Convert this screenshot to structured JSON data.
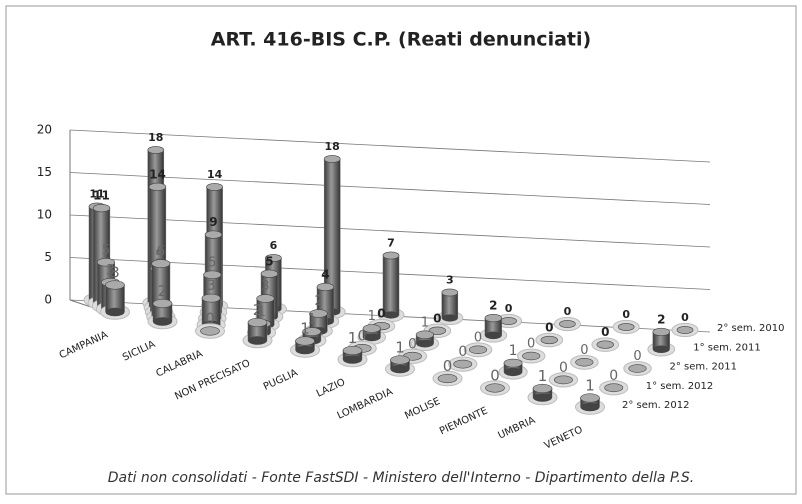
{
  "chart_data": {
    "type": "bar3d",
    "title": "ART. 416-BIS C.P. (Reati denunciati)",
    "footnote": "Dati non consolidati - Fonte FastSDI - Ministero dell'Interno - Dipartimento della P.S.",
    "categories": [
      "CAMPANIA",
      "SICILIA",
      "CALABRIA",
      "NON PRECISATO",
      "PUGLIA",
      "LAZIO",
      "LOMBARDIA",
      "MOLISE",
      "PIEMONTE",
      "UMBRIA",
      "VENETO"
    ],
    "series": [
      {
        "name": "2° sem. 2010",
        "color": "#6e6e6e",
        "values": [
          11,
          18,
          14,
          6,
          18,
          7,
          3,
          0,
          0,
          0,
          0
        ]
      },
      {
        "name": "1° sem. 2011",
        "color": "#6e6e6e",
        "values": [
          11,
          14,
          9,
          5,
          4,
          0,
          0,
          2,
          0,
          0,
          2
        ]
      },
      {
        "name": "2° sem. 2011",
        "color": "#6e6e6e",
        "values": [
          5,
          5,
          5,
          3,
          2,
          1,
          1,
          0,
          0,
          0,
          0
        ]
      },
      {
        "name": "1° sem. 2012",
        "color": "#6e6e6e",
        "values": [
          3,
          6,
          3,
          1,
          1,
          0,
          0,
          0,
          1,
          0,
          0
        ]
      },
      {
        "name": "2° sem. 2012",
        "color": "#6e6e6e",
        "values": [
          3,
          2,
          0,
          2,
          1,
          1,
          1,
          0,
          0,
          1,
          1
        ]
      }
    ],
    "ylim": [
      0,
      20
    ],
    "yticks": [
      0,
      5,
      10,
      15,
      20
    ],
    "grid": true
  }
}
